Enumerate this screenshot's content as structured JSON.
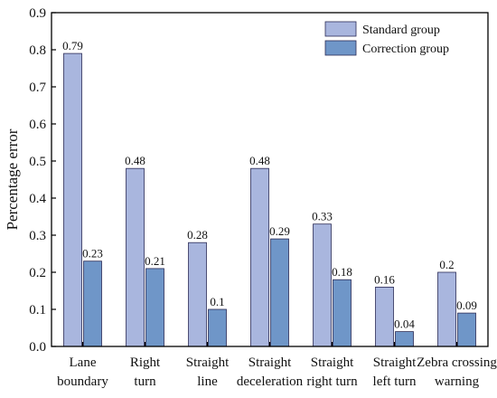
{
  "chart_data": {
    "type": "bar",
    "title": "",
    "xlabel": "",
    "ylabel": "Percentage error",
    "ylim": [
      0,
      0.9
    ],
    "yticks": [
      "0.0",
      "0.1",
      "0.2",
      "0.3",
      "0.4",
      "0.5",
      "0.6",
      "0.7",
      "0.8",
      "0.9"
    ],
    "grid": false,
    "legend_position": "top-right",
    "categories": [
      [
        "Lane",
        "boundary"
      ],
      [
        "Right",
        "turn"
      ],
      [
        "Straight",
        "line"
      ],
      [
        "Straight",
        "deceleration"
      ],
      [
        "Straight",
        "right turn"
      ],
      [
        "Straight",
        "left turn"
      ],
      [
        "Zebra crossing",
        "warning"
      ]
    ],
    "series": [
      {
        "name": "Standard group",
        "color": "#a9b6de",
        "values": [
          0.79,
          0.48,
          0.28,
          0.48,
          0.33,
          0.16,
          0.2
        ],
        "labels": [
          "0.79",
          "0.48",
          "0.28",
          "0.48",
          "0.33",
          "0.16",
          "0.2"
        ]
      },
      {
        "name": "Correction group",
        "color": "#6f96c8",
        "values": [
          0.23,
          0.21,
          0.1,
          0.29,
          0.18,
          0.04,
          0.09
        ],
        "labels": [
          "0.23",
          "0.21",
          "0.1",
          "0.29",
          "0.18",
          "0.04",
          "0.09"
        ]
      }
    ]
  }
}
